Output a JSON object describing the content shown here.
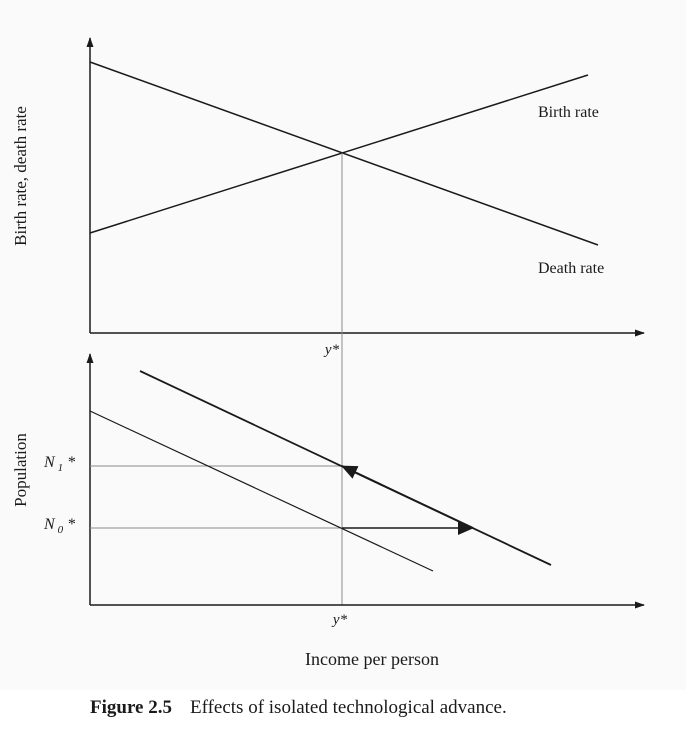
{
  "figure": {
    "caption_number": "Figure 2.5",
    "caption_text": "Effects of isolated technological advance."
  },
  "top_panel": {
    "ylabel": "Birth rate, death rate",
    "lines": [
      {
        "name": "Birth rate",
        "label": "Birth rate"
      },
      {
        "name": "Death rate",
        "label": "Death rate"
      }
    ],
    "xtick_label": "y*"
  },
  "bottom_panel": {
    "ylabel": "Population",
    "xtick_label": "y*",
    "xlabel": "Income per person",
    "ytick_labels": [
      {
        "name": "N1",
        "base": "N",
        "sub": "1",
        "star": "*"
      },
      {
        "name": "N0",
        "base": "N",
        "sub": "0",
        "star": "*"
      }
    ]
  },
  "colors": {
    "ink": "#1a1a1a",
    "guide": "#8a8a8a",
    "background": "#fafafa"
  }
}
